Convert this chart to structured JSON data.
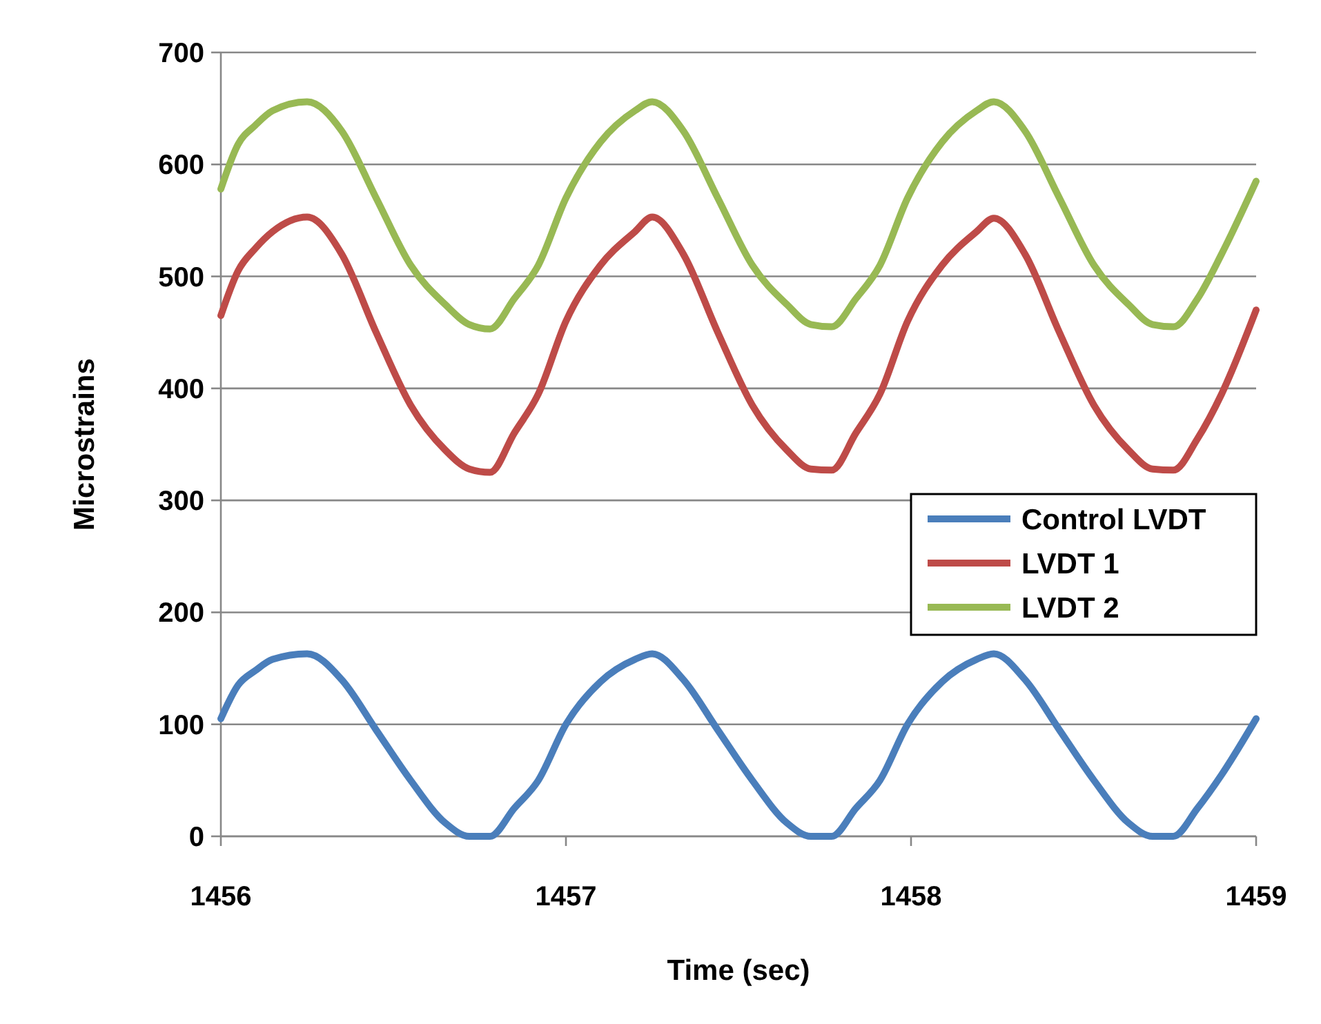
{
  "chart_data": {
    "type": "line",
    "xlabel": "Time (sec)",
    "ylabel": "Microstrains",
    "x": [
      1456,
      1456.05,
      1456.1,
      1456.15,
      1456.25,
      1456.35,
      1456.45,
      1456.55,
      1456.65,
      1456.72,
      1456.78,
      1456.85,
      1456.92,
      1457,
      1457.1,
      1457.2,
      1457.25,
      1457.34,
      1457.44,
      1457.54,
      1457.64,
      1457.71,
      1457.77,
      1457.84,
      1457.91,
      1457.99,
      1458.09,
      1458.19,
      1458.24,
      1458.33,
      1458.43,
      1458.53,
      1458.63,
      1458.7,
      1458.76,
      1458.83,
      1458.9,
      1459
    ],
    "series": [
      {
        "name": "Control LVDT",
        "color": "#4a7ebb",
        "values": [
          105,
          135,
          148,
          158,
          163,
          140,
          95,
          50,
          12,
          0,
          0,
          25,
          50,
          100,
          138,
          158,
          163,
          140,
          95,
          50,
          12,
          0,
          0,
          25,
          50,
          100,
          138,
          158,
          163,
          140,
          95,
          50,
          12,
          0,
          0,
          25,
          55,
          105
        ]
      },
      {
        "name": "LVDT 1",
        "color": "#be4b48",
        "values": [
          465,
          505,
          525,
          540,
          553,
          520,
          450,
          385,
          345,
          328,
          325,
          360,
          395,
          460,
          510,
          540,
          553,
          520,
          450,
          385,
          345,
          328,
          327,
          360,
          395,
          460,
          510,
          540,
          552,
          520,
          450,
          385,
          345,
          328,
          327,
          355,
          395,
          470
        ]
      },
      {
        "name": "LVDT 2",
        "color": "#98b954",
        "values": [
          578,
          618,
          635,
          648,
          656,
          630,
          570,
          510,
          475,
          457,
          453,
          480,
          510,
          570,
          620,
          648,
          656,
          630,
          570,
          510,
          475,
          457,
          455,
          480,
          510,
          570,
          620,
          648,
          656,
          630,
          570,
          510,
          475,
          457,
          455,
          480,
          520,
          585
        ]
      }
    ],
    "xlim": [
      1456,
      1459
    ],
    "xticks": [
      1456,
      1457,
      1458,
      1459
    ],
    "ylim": [
      0,
      700
    ],
    "yticks": [
      0,
      100,
      200,
      300,
      400,
      500,
      600,
      700
    ],
    "grid": "y",
    "legend": "right",
    "marker": "none",
    "line_style": "solid"
  }
}
